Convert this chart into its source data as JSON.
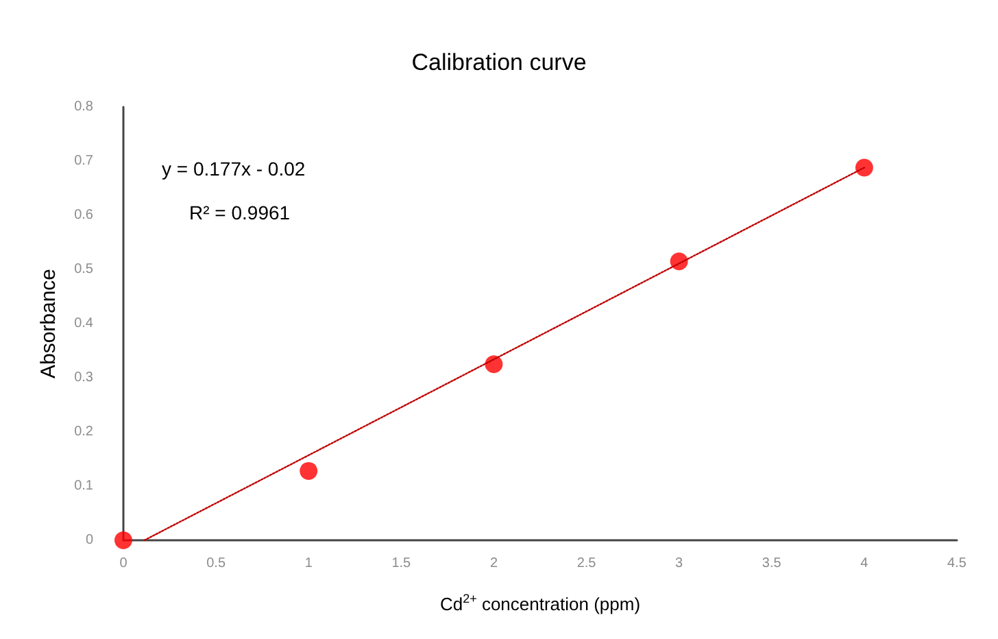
{
  "chart_data": {
    "type": "scatter",
    "title": "Calibration curve",
    "xlabel": "Cd$^{2+}$ concentration (ppm)",
    "ylabel": "Absorbance",
    "x": [
      0,
      1,
      2,
      3,
      4
    ],
    "series": [
      {
        "color": "#ff0000",
        "values": [
          0,
          0.128,
          0.325,
          0.515,
          0.688
        ],
        "marker": "circle"
      },
      {
        "type": "line",
        "color": "#c00000",
        "x": [
          0.113,
          4
        ],
        "values": [
          0,
          0.688
        ],
        "line_style": "dotted",
        "marker": "none"
      }
    ],
    "xlim": [
      0,
      4.5
    ],
    "xticks": [
      0,
      0.5,
      1,
      1.5,
      2,
      2.5,
      3,
      3.5,
      4,
      4.5
    ],
    "ylim": [
      0,
      0.8
    ],
    "yticks": [
      0,
      0.1,
      0.2,
      0.3,
      0.4,
      0.5,
      0.6,
      0.7,
      0.8
    ],
    "grid": false,
    "annotations": [
      "y = 0.177x - 0.02",
      "R² = 0.9961"
    ]
  }
}
